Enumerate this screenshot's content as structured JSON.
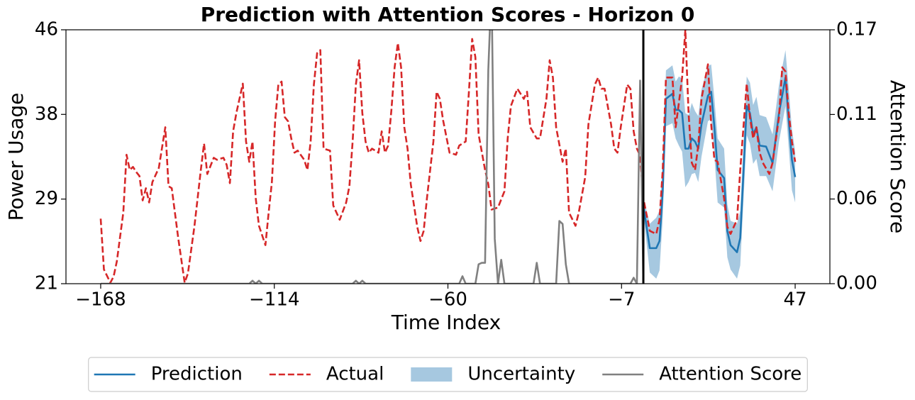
{
  "chart_data": {
    "type": "line",
    "title": "Prediction with Attention Scores - Horizon 0",
    "x_label": "Time Index",
    "y_label": "Power Usage",
    "y2_label": "Attention Score",
    "xlim": [
      -178.75,
      57.75
    ],
    "xticks": [
      {
        "value": -168,
        "label": "−168"
      },
      {
        "value": -114.25,
        "label": "−114"
      },
      {
        "value": -60.5,
        "label": "−60"
      },
      {
        "value": -6.75,
        "label": "−7"
      },
      {
        "value": 47,
        "label": "47"
      }
    ],
    "ylim": [
      21,
      46
    ],
    "yticks": [
      21,
      {
        "value": 29.33,
        "label": "29"
      },
      {
        "value": 37.67,
        "label": "38"
      },
      46
    ],
    "y2lim": [
      0,
      0.17
    ],
    "y2ticks": [
      {
        "value": 0,
        "label": "0.00"
      },
      {
        "value": 0.0567,
        "label": "0.06"
      },
      {
        "value": 0.1133,
        "label": "0.11"
      },
      {
        "value": 0.17,
        "label": "0.17"
      }
    ],
    "vline": 0,
    "legend": "below",
    "series": [
      {
        "name": "Prediction",
        "color": "#1f77b4",
        "style": "solid",
        "x": [
          0,
          2,
          4,
          5,
          6,
          7,
          9,
          10,
          11,
          12,
          13,
          14,
          15,
          16,
          17,
          18,
          20,
          21,
          22,
          23,
          25,
          26,
          27,
          29,
          30,
          32,
          33,
          34,
          35,
          36,
          38,
          40,
          42,
          44,
          45,
          46,
          47
        ],
        "values": [
          28.7,
          24.5,
          24.5,
          25.2,
          30.1,
          39.2,
          39.7,
          38.1,
          38.1,
          37.8,
          34.3,
          34.3,
          35.3,
          35,
          34.3,
          36.7,
          39.5,
          39.9,
          36.4,
          32.2,
          31.4,
          26.2,
          24.8,
          24.1,
          25.5,
          38.5,
          37.8,
          35.7,
          36.4,
          34.6,
          34.5,
          32.9,
          37.8,
          41.3,
          37.1,
          33.2,
          31.5
        ]
      },
      {
        "name": "Actual",
        "color": "#d62728",
        "style": "dashed",
        "x": [
          -168,
          -167,
          -165,
          -164,
          -163,
          -161,
          -160,
          -159,
          -158,
          -157,
          -156,
          -155,
          -154,
          -153,
          -152,
          -150,
          -148,
          -147,
          -146,
          -144,
          -142,
          -141,
          -139,
          -137,
          -136,
          -135,
          -133,
          -132,
          -130,
          -129,
          -128,
          -127,
          -126,
          -124,
          -123,
          -122,
          -121,
          -120,
          -119,
          -117,
          -116,
          -115,
          -114,
          -113,
          -112,
          -111,
          -110,
          -109,
          -108,
          -107,
          -105,
          -104,
          -103,
          -102,
          -101,
          -100,
          -99,
          -97,
          -96,
          -94,
          -92,
          -91,
          -90,
          -89,
          -88,
          -87,
          -86,
          -85,
          -84,
          -82,
          -81,
          -80,
          -79,
          -78,
          -77,
          -76,
          -75,
          -74,
          -73,
          -72,
          -70,
          -69,
          -68,
          -67,
          -65,
          -64,
          -63,
          -62,
          -60,
          -58,
          -57,
          -55,
          -54,
          -53,
          -52,
          -51,
          -49,
          -48,
          -47,
          -45,
          -43,
          -42,
          -41,
          -39,
          -37,
          -36,
          -35,
          -33,
          -32,
          -30,
          -29,
          -28,
          -27,
          -25,
          -24,
          -23,
          -21,
          -20,
          -18,
          -17,
          -15,
          -14,
          -13,
          -12,
          -10,
          -9,
          -8,
          -7,
          -5,
          -4,
          -3,
          -2,
          -1,
          0,
          2,
          4,
          5,
          6,
          7,
          9,
          10,
          11,
          12,
          13,
          14,
          15,
          16,
          17,
          18,
          20,
          21,
          22,
          23,
          25,
          26,
          27,
          29,
          30,
          32,
          33,
          34,
          35,
          36,
          37,
          39,
          40,
          42,
          43,
          44,
          45,
          46,
          47
        ],
        "values": [
          27.4,
          22.4,
          21.1,
          21.7,
          23.2,
          28,
          33.7,
          32.2,
          32.5,
          32,
          31.6,
          29.2,
          30.4,
          29,
          31,
          32.4,
          36.4,
          30.6,
          30.4,
          25.5,
          21.1,
          22,
          26.6,
          32.2,
          34.8,
          31.8,
          33.4,
          33.2,
          33.4,
          32.7,
          30.9,
          36,
          37.8,
          40.7,
          35,
          33,
          35,
          29.4,
          26.7,
          24.8,
          28,
          31,
          37,
          40.6,
          40.9,
          37.4,
          37,
          35.3,
          33.9,
          34.1,
          33.2,
          32.2,
          35,
          40.6,
          43.7,
          44,
          34.3,
          34.1,
          28.7,
          27.3,
          29,
          30.6,
          35,
          40.6,
          43,
          37.8,
          35,
          33.9,
          34.3,
          33.9,
          36,
          33.9,
          34.6,
          38.1,
          42.3,
          44.7,
          42.3,
          36.4,
          34.3,
          30.8,
          26.6,
          25.2,
          26.2,
          29.4,
          35,
          39.9,
          39.2,
          37.1,
          33.9,
          33.7,
          34.6,
          35,
          39.9,
          45.1,
          43.3,
          35.7,
          32.2,
          30.8,
          28.3,
          28.5,
          30.1,
          35.3,
          38.5,
          40.2,
          39.2,
          39.9,
          36.4,
          35.3,
          35.3,
          39.2,
          43,
          41.3,
          36.4,
          33,
          34.3,
          28,
          26.7,
          28,
          31.5,
          36.7,
          40.6,
          41.3,
          40.2,
          40.2,
          36.7,
          34.3,
          33.9,
          36.4,
          40.6,
          40.2,
          36,
          34.3,
          33.6,
          29.4,
          26.2,
          25.9,
          27.3,
          32.2,
          41.3,
          41.3,
          36.4,
          38.8,
          41.3,
          46,
          37.8,
          32.9,
          32.2,
          34.6,
          39.2,
          42.6,
          36.7,
          33.2,
          33,
          29.4,
          26.6,
          25.9,
          27.3,
          32.2,
          40.7,
          37.4,
          35.3,
          36.4,
          33.9,
          32.9,
          31.8,
          32.9,
          37.4,
          42.3,
          41.9,
          37.8,
          35,
          33
        ]
      },
      {
        "name": "Uncertainty",
        "color": "#a6c8e0",
        "style": "band",
        "x": [
          0,
          2,
          4,
          5,
          6,
          7,
          9,
          10,
          11,
          12,
          13,
          14,
          15,
          16,
          17,
          18,
          20,
          21,
          22,
          23,
          25,
          26,
          27,
          29,
          30,
          32,
          33,
          34,
          35,
          36,
          38,
          40,
          42,
          44,
          45,
          46,
          47
        ],
        "lower": [
          27.9,
          22.1,
          21.5,
          22.3,
          27.4,
          36.5,
          36.8,
          35.3,
          34.6,
          34.0,
          30.5,
          31.0,
          31.8,
          31.9,
          31.0,
          33.5,
          37.0,
          37.2,
          33.5,
          29.0,
          28.5,
          23.6,
          22.4,
          21.5,
          22.8,
          35.6,
          34.8,
          32.8,
          33.3,
          31.6,
          31.6,
          30.1,
          35.0,
          38.5,
          34.4,
          30.2,
          29.0
        ],
        "upper": [
          29.5,
          26.9,
          27.5,
          28.2,
          32.8,
          42.0,
          42.5,
          40.9,
          41.4,
          41.2,
          37.8,
          37.6,
          38.8,
          38.0,
          37.5,
          40.1,
          42.4,
          42.6,
          39.2,
          35.3,
          34.3,
          28.8,
          27.2,
          26.9,
          28.2,
          41.4,
          40.8,
          38.6,
          39.4,
          37.6,
          37.4,
          35.7,
          40.6,
          44.0,
          40.2,
          36.2,
          34.0
        ]
      },
      {
        "name": "Attention Score",
        "color": "#808080",
        "style": "solid",
        "axis": "y2",
        "x": [
          -168,
          -122,
          -121,
          -120,
          -119,
          -118,
          -90,
          -89,
          -88,
          -87,
          -86,
          -57,
          -56,
          -55,
          -52,
          -51,
          -50,
          -49,
          -48,
          -47,
          -46,
          -45,
          -44,
          -43,
          -42,
          -34,
          -33,
          -32,
          -31,
          -27,
          -26,
          -25,
          -24,
          -23,
          -22,
          -4,
          -3,
          -2,
          -1,
          0
        ],
        "values": [
          0,
          0,
          0.002,
          0,
          0.002,
          0,
          0,
          0.002,
          0,
          0.002,
          0,
          0,
          0.005,
          0,
          0,
          0.013,
          0.014,
          0.014,
          0.143,
          0.2,
          0.03,
          0,
          0.016,
          0,
          0,
          0,
          0.014,
          0,
          0,
          0,
          0.042,
          0.04,
          0.013,
          0,
          0,
          0,
          0.004,
          0,
          0.136,
          0
        ]
      }
    ]
  }
}
